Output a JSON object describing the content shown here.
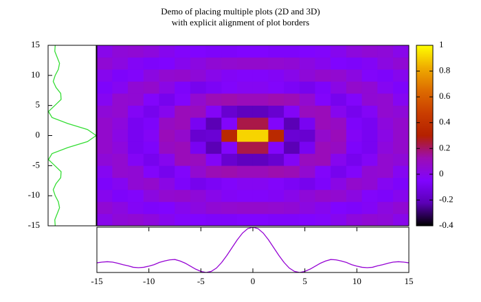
{
  "chart_data": [
    {
      "type": "heatmap",
      "title": [
        "Demo of placing multiple plots (2D and 3D)",
        "with explicit alignment of plot borders"
      ],
      "x": [
        -14.25,
        -12.75,
        -11.25,
        -9.75,
        -8.25,
        -6.75,
        -5.25,
        -3.75,
        -2.25,
        -0.75,
        0.75,
        2.25,
        3.75,
        5.25,
        6.75,
        8.25,
        9.75,
        11.25,
        12.75,
        14.25
      ],
      "y": [
        -14,
        -12,
        -10,
        -8,
        -6,
        -4,
        -2,
        0,
        2,
        4,
        6,
        8,
        10,
        12,
        14
      ],
      "values": [
        [
          0,
          0.04,
          0.05,
          0.03,
          -0.01,
          -0.04,
          -0.05,
          -0.06,
          -0.06,
          -0.05,
          -0.05,
          -0.06,
          -0.06,
          -0.05,
          -0.04,
          -0.01,
          0.03,
          0.05,
          0.04,
          0
        ],
        [
          0.05,
          0.02,
          -0.03,
          -0.06,
          -0.05,
          -0.01,
          0.02,
          0.05,
          0.06,
          0.07,
          0.07,
          0.06,
          0.05,
          0.02,
          -0.01,
          -0.05,
          -0.06,
          -0.03,
          0.02,
          0.05
        ],
        [
          -0.01,
          -0.06,
          -0.04,
          0.02,
          0.06,
          0.07,
          0.04,
          0,
          -0.03,
          -0.04,
          -0.04,
          -0.03,
          0,
          0.04,
          0.07,
          0.06,
          0.02,
          -0.04,
          -0.06,
          -0.01
        ],
        [
          -0.06,
          -0.02,
          0.05,
          0.07,
          0.01,
          -0.06,
          -0.09,
          -0.07,
          -0.04,
          -0.02,
          -0.02,
          -0.04,
          -0.07,
          -0.09,
          -0.06,
          0.01,
          0.07,
          0.05,
          -0.02,
          -0.06
        ],
        [
          -0.02,
          0.06,
          0.05,
          -0.04,
          -0.09,
          -0.04,
          0.06,
          0.12,
          0.13,
          0.11,
          0.11,
          0.13,
          0.12,
          0.06,
          -0.04,
          -0.09,
          -0.04,
          0.05,
          0.06,
          -0.02
        ],
        [
          0.04,
          0.06,
          -0.03,
          -0.09,
          -0.01,
          0.11,
          0.1,
          -0.03,
          -0.16,
          -0.2,
          -0.2,
          -0.16,
          -0.03,
          0.1,
          0.11,
          -0.01,
          -0.09,
          -0.03,
          0.06,
          0.04
        ],
        [
          0.07,
          0.03,
          -0.08,
          -0.06,
          0.09,
          0.11,
          -0.08,
          -0.22,
          -0.04,
          0.23,
          0.23,
          -0.04,
          -0.22,
          -0.08,
          0.11,
          0.09,
          -0.06,
          -0.08,
          0.03,
          0.07
        ],
        [
          0.07,
          0.01,
          -0.08,
          -0.03,
          0.11,
          0.07,
          -0.16,
          -0.15,
          0.35,
          0.91,
          0.91,
          0.35,
          -0.15,
          -0.16,
          0.07,
          0.11,
          -0.03,
          -0.08,
          0.01,
          0.07
        ],
        [
          0.07,
          0.03,
          -0.08,
          -0.06,
          0.09,
          0.11,
          -0.08,
          -0.22,
          -0.04,
          0.23,
          0.23,
          -0.04,
          -0.22,
          -0.08,
          0.11,
          0.09,
          -0.06,
          -0.08,
          0.03,
          0.07
        ],
        [
          0.04,
          0.06,
          -0.03,
          -0.09,
          -0.01,
          0.11,
          0.1,
          -0.03,
          -0.16,
          -0.2,
          -0.2,
          -0.16,
          -0.03,
          0.1,
          0.11,
          -0.01,
          -0.09,
          -0.03,
          0.06,
          0.04
        ],
        [
          -0.02,
          0.06,
          0.05,
          -0.04,
          -0.09,
          -0.04,
          0.06,
          0.12,
          0.13,
          0.11,
          0.11,
          0.13,
          0.12,
          0.06,
          -0.04,
          -0.09,
          -0.04,
          0.05,
          0.06,
          -0.02
        ],
        [
          -0.06,
          -0.02,
          0.05,
          0.07,
          0.01,
          -0.06,
          -0.09,
          -0.07,
          -0.04,
          -0.02,
          -0.02,
          -0.04,
          -0.07,
          -0.09,
          -0.06,
          0.01,
          0.07,
          0.05,
          -0.02,
          -0.06
        ],
        [
          -0.01,
          -0.06,
          -0.04,
          0.02,
          0.06,
          0.07,
          0.04,
          0,
          -0.03,
          -0.04,
          -0.04,
          -0.03,
          0,
          0.04,
          0.07,
          0.06,
          0.02,
          -0.04,
          -0.06,
          -0.01
        ],
        [
          0.05,
          0.02,
          -0.03,
          -0.06,
          -0.05,
          -0.01,
          0.02,
          0.05,
          0.06,
          0.07,
          0.07,
          0.06,
          0.05,
          0.02,
          -0.01,
          -0.05,
          -0.06,
          -0.03,
          0.02,
          0.05
        ],
        [
          0,
          0.04,
          0.05,
          0.03,
          -0.01,
          -0.04,
          -0.05,
          -0.06,
          -0.06,
          -0.05,
          -0.05,
          -0.06,
          -0.06,
          -0.05,
          -0.04,
          -0.01,
          0.03,
          0.05,
          0.04,
          0
        ]
      ],
      "xlim": [
        -15,
        15
      ],
      "ylim": [
        -15,
        15
      ],
      "cblim": [
        -0.4,
        1
      ],
      "cbticks": [
        -0.4,
        -0.2,
        0,
        0.2,
        0.4,
        0.6,
        0.8,
        1
      ],
      "colormap": [
        "#000000",
        "#5a00b4",
        "#8004ff",
        "#9c0db4",
        "#b42000",
        "#ca3e00",
        "#dd6c00",
        "#efab00",
        "#ffff00"
      ]
    },
    {
      "type": "line",
      "y": [
        -15,
        -14,
        -13,
        -12,
        -11,
        -10,
        -9,
        -8,
        -7,
        -6,
        -5,
        -4,
        -3,
        -2,
        -1,
        0,
        1,
        2,
        3,
        4,
        5,
        6,
        7,
        8,
        9,
        10,
        11,
        12,
        13,
        14,
        15
      ],
      "values": [
        -0.04,
        -0.05,
        0.01,
        0.07,
        0.04,
        -0.04,
        -0.09,
        -0.02,
        0.1,
        0.11,
        -0.05,
        -0.21,
        -0.12,
        0.28,
        0.78,
        1,
        0.78,
        0.28,
        -0.12,
        -0.21,
        -0.05,
        0.11,
        0.1,
        -0.02,
        -0.09,
        -0.04,
        0.04,
        0.07,
        0.01,
        -0.05,
        -0.04
      ],
      "xlim": [
        -0.22,
        1
      ],
      "ylim": [
        -15,
        15
      ],
      "yticks": [
        -15,
        -10,
        -5,
        0,
        5,
        10,
        15
      ],
      "color": "#33dd33"
    },
    {
      "type": "line",
      "x": [
        -15,
        -14.5,
        -14,
        -13.5,
        -13,
        -12.5,
        -12,
        -11.5,
        -11,
        -10.5,
        -10,
        -9.5,
        -9,
        -8.5,
        -8,
        -7.5,
        -7,
        -6.5,
        -6,
        -5.5,
        -5,
        -4.5,
        -4,
        -3.5,
        -3,
        -2.5,
        -2,
        -1.5,
        -1,
        -0.5,
        0,
        0.5,
        1,
        1.5,
        2,
        2.5,
        3,
        3.5,
        4,
        4.5,
        5,
        5.5,
        6,
        6.5,
        7,
        7.5,
        8,
        8.5,
        9,
        9.5,
        10,
        10.5,
        11,
        11.5,
        12,
        12.5,
        13,
        13.5,
        14,
        14.5,
        15
      ],
      "values": [
        0.04,
        0.06,
        0.07,
        0.06,
        0.03,
        -0.01,
        -0.04,
        -0.08,
        -0.09,
        -0.08,
        -0.05,
        -0.01,
        0.05,
        0.09,
        0.12,
        0.13,
        0.09,
        0.03,
        -0.05,
        -0.13,
        -0.19,
        -0.22,
        -0.19,
        -0.1,
        0.05,
        0.24,
        0.45,
        0.66,
        0.84,
        0.96,
        1,
        0.96,
        0.84,
        0.66,
        0.45,
        0.24,
        0.05,
        -0.1,
        -0.19,
        -0.22,
        -0.19,
        -0.13,
        -0.05,
        0.03,
        0.09,
        0.13,
        0.12,
        0.09,
        0.05,
        -0.01,
        -0.05,
        -0.08,
        -0.09,
        -0.08,
        -0.04,
        -0.01,
        0.03,
        0.06,
        0.07,
        0.06,
        0.04
      ],
      "xlim": [
        -15,
        15
      ],
      "ylim": [
        -0.22,
        1
      ],
      "xticks": [
        -15,
        -10,
        -5,
        0,
        5,
        10,
        15
      ],
      "color": "#9400d3"
    }
  ]
}
